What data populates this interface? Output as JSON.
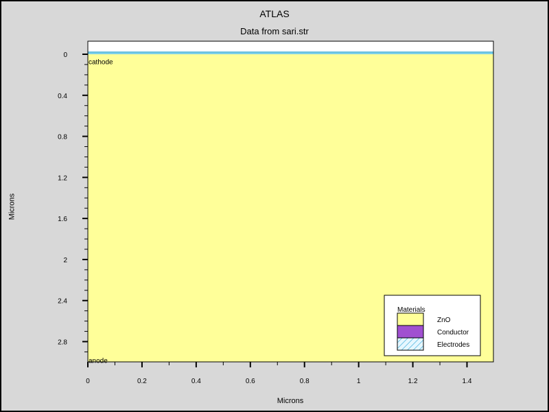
{
  "chart_data": {
    "type": "heatmap",
    "title": "ATLAS",
    "subtitle": "Data from sari.str",
    "xlabel": "Microns",
    "ylabel": "Microns",
    "xlim": [
      0,
      1.5
    ],
    "ylim": [
      3.0,
      -0.1
    ],
    "x_ticks": [
      "0",
      "0.2",
      "0.4",
      "0.6",
      "0.8",
      "1",
      "1.2",
      "1.4"
    ],
    "y_ticks": [
      "0",
      "0.4",
      "0.8",
      "1.2",
      "1.6",
      "2",
      "2.4",
      "2.8"
    ],
    "regions": [
      {
        "material": "ZnO",
        "x": [
          0,
          1.5
        ],
        "y": [
          0,
          3.0
        ]
      },
      {
        "material": "Electrodes",
        "x": [
          0,
          1.5
        ],
        "y": [
          -0.012,
          0.0
        ]
      }
    ],
    "electrode_labels": [
      {
        "text": "cathode",
        "x": 0.0,
        "y": 0.07
      },
      {
        "text": "anode",
        "x": 0.0,
        "y": 2.98
      }
    ],
    "legend": {
      "title": "Materials",
      "position": "bottom-right",
      "items": [
        {
          "label": "ZnO",
          "color": "#ffff99"
        },
        {
          "label": "Conductor",
          "color": "#a050d0"
        },
        {
          "label": "Electrodes",
          "color": "#7fd0e8"
        }
      ]
    }
  }
}
